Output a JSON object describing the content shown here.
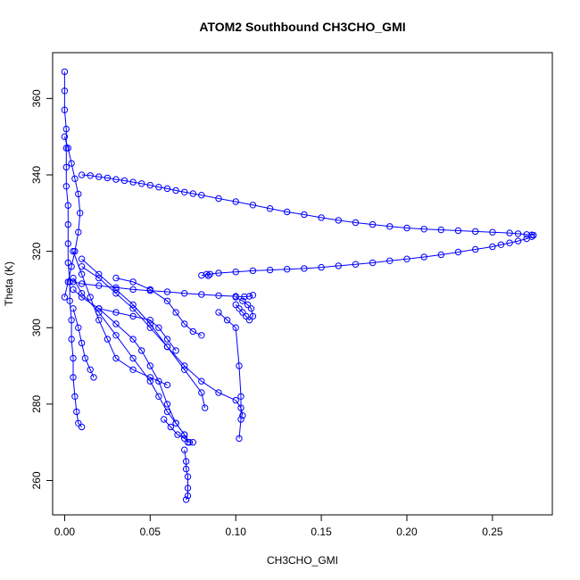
{
  "chart_data": {
    "type": "scatter",
    "title": "ATOM2 Southbound CH3CHO_GMI",
    "xlabel": "CH3CHO_GMI",
    "ylabel": "Theta (K)",
    "xlim": [
      -0.007,
      0.285
    ],
    "ylim": [
      251,
      372
    ],
    "xticks": [
      0.0,
      0.05,
      0.1,
      0.15,
      0.2,
      0.25
    ],
    "xtick_labels": [
      "0.00",
      "0.05",
      "0.10",
      "0.15",
      "0.20",
      "0.25"
    ],
    "yticks": [
      260,
      280,
      300,
      320,
      340,
      360
    ],
    "ytick_labels": [
      "260",
      "280",
      "300",
      "320",
      "340",
      "360"
    ],
    "grid": false,
    "marker": "open-circle",
    "color": "#0000ff",
    "series": [
      {
        "x": [
          0.0,
          0.0,
          0.0,
          0.001,
          0.001,
          0.001,
          0.001,
          0.002,
          0.002,
          0.002,
          0.002,
          0.003,
          0.003,
          0.004,
          0.004,
          0.005,
          0.005,
          0.006,
          0.007,
          0.008,
          0.01
        ],
        "y": [
          367,
          362,
          357,
          352,
          347,
          342,
          337,
          332,
          327,
          322,
          317,
          312,
          307,
          302,
          297,
          292,
          287,
          282,
          278,
          275,
          274
        ]
      },
      {
        "x": [
          0.01,
          0.015,
          0.02,
          0.025,
          0.03,
          0.035,
          0.04,
          0.045,
          0.05,
          0.055,
          0.06,
          0.065,
          0.07,
          0.075,
          0.08,
          0.09,
          0.1,
          0.11,
          0.12,
          0.13,
          0.14,
          0.15,
          0.16,
          0.17,
          0.18,
          0.19,
          0.2,
          0.21,
          0.22,
          0.23,
          0.24,
          0.25,
          0.26,
          0.265,
          0.27,
          0.273,
          0.274
        ],
        "y": [
          340,
          339.8,
          339.5,
          339.2,
          338.8,
          338.5,
          338.1,
          337.7,
          337.3,
          336.8,
          336.4,
          335.9,
          335.5,
          335.1,
          334.7,
          333.8,
          333,
          332.1,
          331.2,
          330.3,
          329.6,
          328.8,
          328.1,
          327.5,
          327,
          326.5,
          326.1,
          325.8,
          325.6,
          325.4,
          325.2,
          325,
          324.8,
          324.6,
          324.4,
          324.3,
          324.2
        ]
      },
      {
        "x": [
          0.273,
          0.27,
          0.265,
          0.26,
          0.255,
          0.25,
          0.24,
          0.23,
          0.22,
          0.21,
          0.2,
          0.19,
          0.18,
          0.17,
          0.16,
          0.15,
          0.14,
          0.13,
          0.12,
          0.11,
          0.1,
          0.09,
          0.085,
          0.08
        ],
        "y": [
          323.8,
          323.3,
          322.7,
          322.2,
          321.7,
          321.2,
          320.5,
          319.8,
          319.1,
          318.5,
          318,
          317.5,
          317,
          316.6,
          316.2,
          315.8,
          315.5,
          315.3,
          315.1,
          314.9,
          314.6,
          314.3,
          314,
          313.7
        ]
      },
      {
        "x": [
          0.005,
          0.01,
          0.02,
          0.03,
          0.04,
          0.05,
          0.06,
          0.07,
          0.08,
          0.09,
          0.1,
          0.105,
          0.108,
          0.11
        ],
        "y": [
          312,
          311.5,
          311,
          310.5,
          310,
          309.7,
          309.4,
          309,
          308.7,
          308.4,
          308.2,
          308.1,
          308.2,
          308.5
        ]
      },
      {
        "x": [
          0.1,
          0.102,
          0.104,
          0.106,
          0.108,
          0.11,
          0.109,
          0.107,
          0.104,
          0.1
        ],
        "y": [
          306,
          305,
          304,
          303,
          302,
          303,
          305,
          306,
          307,
          308
        ]
      },
      {
        "x": [
          0.005,
          0.01,
          0.02,
          0.03,
          0.04,
          0.045,
          0.05,
          0.055,
          0.06,
          0.065,
          0.07,
          0.072
        ],
        "y": [
          310,
          308,
          305,
          301,
          297,
          294,
          290,
          286,
          280,
          275,
          272,
          270
        ]
      },
      {
        "x": [
          0.07,
          0.071,
          0.071,
          0.072,
          0.072,
          0.072,
          0.071
        ],
        "y": [
          268,
          265,
          263,
          261,
          258,
          256,
          255
        ]
      },
      {
        "x": [
          0.005,
          0.01,
          0.02,
          0.03,
          0.04,
          0.05,
          0.055,
          0.06,
          0.065,
          0.07
        ],
        "y": [
          313,
          309,
          304,
          298,
          292,
          286,
          282,
          278,
          275,
          272
        ]
      },
      {
        "x": [
          0.01,
          0.02,
          0.03,
          0.04,
          0.05,
          0.06,
          0.07,
          0.08,
          0.09,
          0.1,
          0.103,
          0.104
        ],
        "y": [
          316,
          313,
          309,
          305,
          300,
          295,
          290,
          286,
          283,
          281,
          279,
          277
        ]
      },
      {
        "x": [
          0.01,
          0.02,
          0.03,
          0.04,
          0.05,
          0.06,
          0.07,
          0.08,
          0.082
        ],
        "y": [
          318,
          314,
          310,
          306,
          301,
          295,
          289,
          283,
          279
        ]
      },
      {
        "x": [
          0.005,
          0.01,
          0.015,
          0.02,
          0.025,
          0.03,
          0.04,
          0.05,
          0.06
        ],
        "y": [
          320,
          314,
          308,
          302,
          297,
          292,
          289,
          287,
          285
        ]
      },
      {
        "x": [
          0.005,
          0.008,
          0.01,
          0.012,
          0.015,
          0.017
        ],
        "y": [
          305,
          300,
          296,
          292,
          289,
          287
        ]
      },
      {
        "x": [
          0.03,
          0.04,
          0.05,
          0.06,
          0.065,
          0.07,
          0.075,
          0.08
        ],
        "y": [
          313,
          312,
          310,
          307,
          304,
          301,
          299,
          298
        ]
      },
      {
        "x": [
          0.02,
          0.03,
          0.04,
          0.05,
          0.055,
          0.06,
          0.065
        ],
        "y": [
          305,
          304,
          303,
          302,
          300,
          297,
          294
        ]
      },
      {
        "x": [
          0.0,
          0.002,
          0.004,
          0.006,
          0.008,
          0.009,
          0.008,
          0.006,
          0.004,
          0.002,
          0.0
        ],
        "y": [
          350,
          347,
          343,
          339,
          335,
          330,
          325,
          320,
          316,
          312,
          308
        ]
      },
      {
        "x": [
          0.09,
          0.095,
          0.1,
          0.102,
          0.103,
          0.103,
          0.102
        ],
        "y": [
          304,
          302,
          300,
          290,
          282,
          276,
          271
        ]
      },
      {
        "x": [
          0.058,
          0.062,
          0.066,
          0.07,
          0.073,
          0.075
        ],
        "y": [
          276,
          274,
          272,
          271,
          270,
          270
        ]
      },
      {
        "x": [
          0.083,
          0.084
        ],
        "y": [
          314,
          313.6
        ]
      }
    ]
  }
}
